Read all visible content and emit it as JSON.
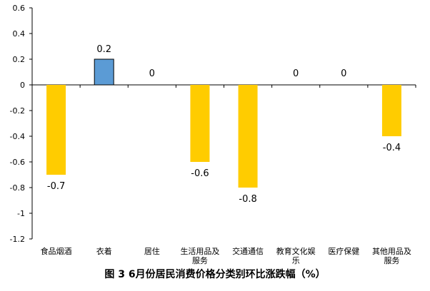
{
  "caption": {
    "text": "图 3 6月份居民消费价格分类别环比涨跌幅（%）"
  },
  "chart_data": {
    "type": "bar",
    "categories": [
      [
        "食品烟酒"
      ],
      [
        "衣着"
      ],
      [
        "居住"
      ],
      [
        "生活用品及",
        "服务"
      ],
      [
        "交通通信"
      ],
      [
        "教育文化娱",
        "乐"
      ],
      [
        "医疗保健"
      ],
      [
        "其他用品及",
        "服务"
      ]
    ],
    "values": [
      -0.7,
      0.2,
      0,
      -0.6,
      -0.8,
      0,
      0,
      -0.4
    ],
    "data_labels": [
      "-0.7",
      "0.2",
      "0",
      "-0.6",
      "-0.8",
      "0",
      "0",
      "-0.4"
    ],
    "ylim": [
      -1.2,
      0.6
    ],
    "yticks": [
      0.6,
      0.4,
      0.2,
      0,
      -0.2,
      -0.4,
      -0.6,
      -0.8,
      -1,
      -1.2
    ],
    "ytick_labels": [
      "0.6",
      "0.4",
      "0.2",
      "0",
      "-0.2",
      "-0.4",
      "-0.6",
      "-0.8",
      "-1",
      "-1.2"
    ],
    "grid": false,
    "legend": "none",
    "colors": {
      "negative": "#FFCC00",
      "positive": "#5B9BD5",
      "positive_edge": "#000000",
      "axis": "#000000"
    }
  }
}
